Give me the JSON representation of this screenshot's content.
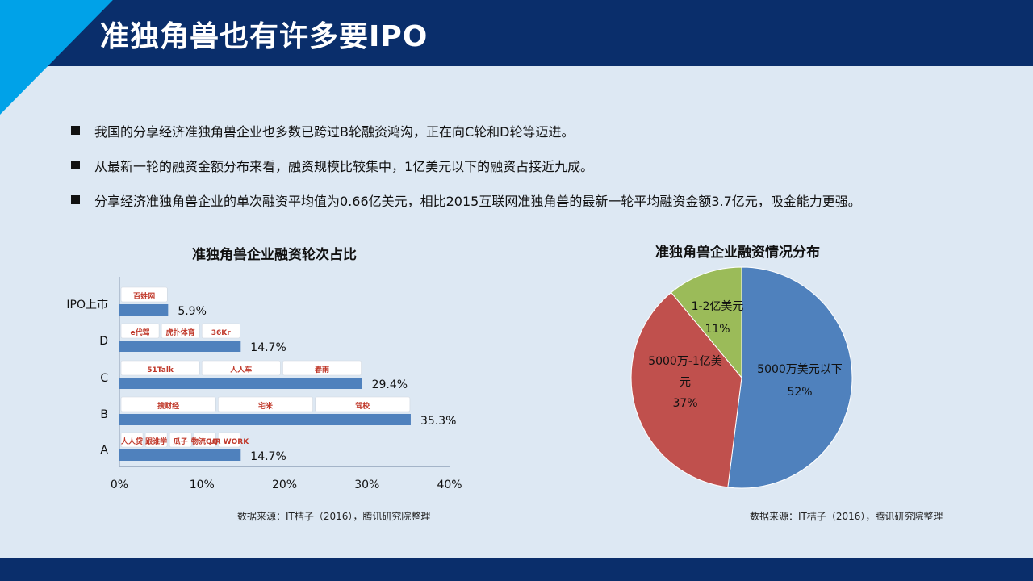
{
  "page": {
    "title": "准独角兽也有许多要IPO",
    "bullets": [
      "我国的分享经济准独角兽企业也多数已跨过B轮融资鸿沟，正在向C轮和D轮等迈进。",
      "从最新一轮的融资金额分布来看，融资规模比较集中，1亿美元以下的融资占接近九成。",
      "分享经济准独角兽企业的单次融资平均值为0.66亿美元，相比2015互联网准独角兽的最新一轮平均融资金额3.7亿元，吸金能力更强。"
    ]
  },
  "colors": {
    "header": "#0a2e6b",
    "accent": "#00a2e8",
    "bar": "#4f81bd",
    "pie_blue": "#4f81bd",
    "pie_red": "#c0504d",
    "pie_green": "#9bbb59"
  },
  "chart_data": [
    {
      "type": "bar",
      "orientation": "horizontal",
      "title": "准独角兽企业融资轮次占比",
      "categories": [
        "IPO上市",
        "D",
        "C",
        "B",
        "A"
      ],
      "values": [
        5.9,
        14.7,
        29.4,
        35.3,
        14.7
      ],
      "value_labels": [
        "5.9%",
        "14.7%",
        "29.4%",
        "35.3%",
        "14.7%"
      ],
      "xlim": [
        0,
        40
      ],
      "x_ticks": [
        "0%",
        "10%",
        "20%",
        "30%",
        "40%"
      ],
      "grid": false,
      "source": "数据来源：IT桔子（2016），腾讯研究院整理",
      "company_logos": {
        "IPO上市": [
          "百姓网"
        ],
        "D": [
          "e代驾",
          "虎扑体育",
          "36Kr"
        ],
        "C": [
          "51Talk",
          "人人车",
          "春雨"
        ],
        "B": [
          "搜财经",
          "宅米",
          "驾校"
        ],
        "A": [
          "人人贷",
          "跟谁学",
          "瓜子",
          "物流QQ",
          "UR WORK"
        ]
      }
    },
    {
      "type": "pie",
      "title": "准独角兽企业融资情况分布",
      "slices": [
        {
          "label": "5000万美元以下",
          "value": 52,
          "value_label": "52%",
          "color": "#4f81bd"
        },
        {
          "label": "5000万-1亿美元",
          "value": 37,
          "value_label": "37%",
          "color": "#c0504d"
        },
        {
          "label": "1-2亿美元",
          "value": 11,
          "value_label": "11%",
          "color": "#9bbb59"
        }
      ],
      "source": "数据来源：IT桔子（2016），腾讯研究院整理"
    }
  ]
}
